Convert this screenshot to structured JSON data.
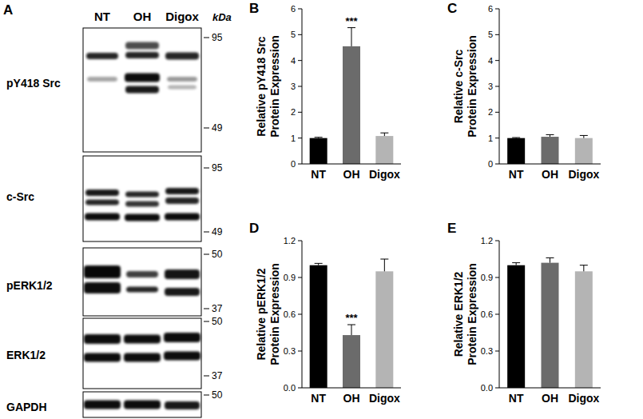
{
  "blot": {
    "panel": "A",
    "lanes": [
      "NT",
      "OH",
      "Digox"
    ],
    "unit": "kDa",
    "rows": [
      {
        "label": "pY418 Src",
        "markers": [
          95,
          49
        ]
      },
      {
        "label": "c-Src",
        "markers": [
          95,
          49
        ]
      },
      {
        "label": "pERK1/2",
        "markers": [
          50,
          37
        ]
      },
      {
        "label": "ERK1/2",
        "markers": [
          50,
          37
        ]
      },
      {
        "label": "GAPDH",
        "markers": [
          50
        ]
      }
    ]
  },
  "chart_data": [
    {
      "type": "bar",
      "panel": "B",
      "y_label": [
        "Relative pY418 Src",
        "Protein Expression"
      ],
      "categories": [
        "NT",
        "OH",
        "Digox"
      ],
      "values": [
        1.0,
        4.55,
        1.08
      ],
      "errors": [
        0.03,
        0.72,
        0.12
      ],
      "colors": [
        "#000000",
        "#6b6b6b",
        "#b4b4b4"
      ],
      "ylim": [
        0,
        6
      ],
      "yticks": [
        0,
        1,
        2,
        3,
        4,
        5,
        6
      ],
      "annotations": [
        {
          "text": "***",
          "category": "OH"
        }
      ]
    },
    {
      "type": "bar",
      "panel": "C",
      "y_label": [
        "Relative c-Src",
        "Protein Expression"
      ],
      "categories": [
        "NT",
        "OH",
        "Digox"
      ],
      "values": [
        1.0,
        1.05,
        1.0
      ],
      "errors": [
        0.02,
        0.08,
        0.1
      ],
      "colors": [
        "#000000",
        "#6b6b6b",
        "#b4b4b4"
      ],
      "ylim": [
        0,
        6
      ],
      "yticks": [
        0,
        1,
        2,
        3,
        4,
        5,
        6
      ]
    },
    {
      "type": "bar",
      "panel": "D",
      "y_label": [
        "Relative pERK1/2",
        "Protein Expression"
      ],
      "categories": [
        "NT",
        "OH",
        "Digox"
      ],
      "values": [
        1.0,
        0.43,
        0.95
      ],
      "errors": [
        0.015,
        0.085,
        0.1
      ],
      "colors": [
        "#000000",
        "#6b6b6b",
        "#b4b4b4"
      ],
      "ylim": [
        0,
        1.2
      ],
      "yticks": [
        {
          "value": 0,
          "label": "0.0"
        },
        0.3,
        0.6,
        0.9,
        1.2
      ],
      "annotations": [
        {
          "text": "***",
          "category": "OH"
        }
      ]
    },
    {
      "type": "bar",
      "panel": "E",
      "y_label": [
        "Relative ERK1/2",
        "Protein Expression"
      ],
      "categories": [
        "NT",
        "OH",
        "Digox"
      ],
      "values": [
        1.0,
        1.02,
        0.95
      ],
      "errors": [
        0.02,
        0.04,
        0.05
      ],
      "colors": [
        "#000000",
        "#6b6b6b",
        "#b4b4b4"
      ],
      "ylim": [
        0,
        1.2
      ],
      "yticks": [
        {
          "value": 0,
          "label": "0.0"
        },
        0.3,
        0.6,
        0.9,
        1.2
      ]
    }
  ]
}
